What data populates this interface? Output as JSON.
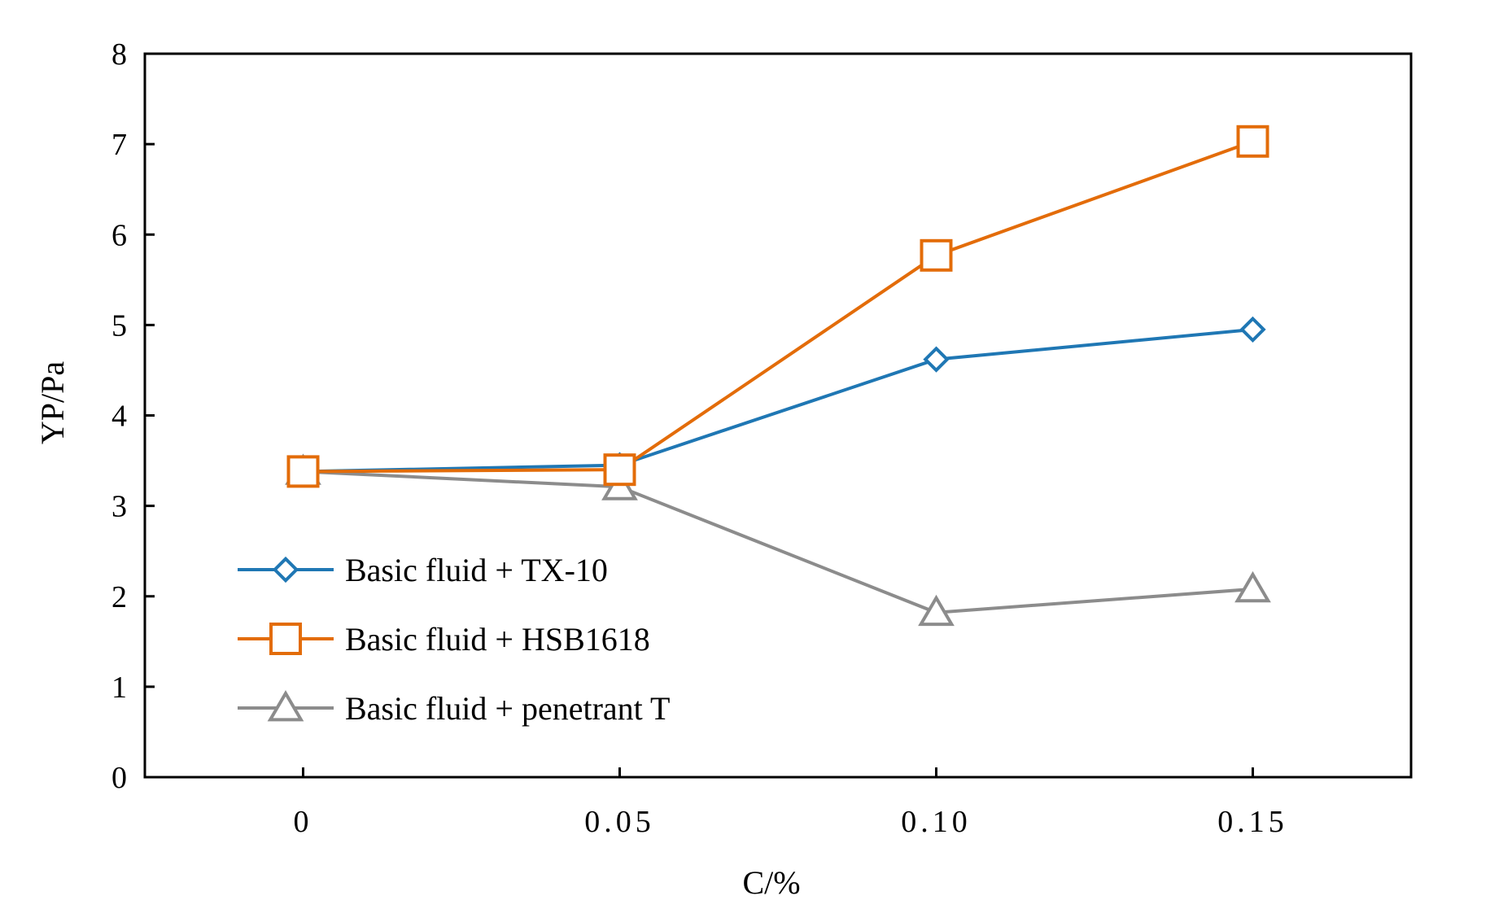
{
  "chart_data": {
    "type": "line",
    "title": "",
    "xlabel": "C/%",
    "ylabel": "YP/Pa",
    "categories": [
      "0",
      "0.05",
      "0.10",
      "0.15"
    ],
    "x": [
      0,
      0.05,
      0.1,
      0.15
    ],
    "xlim": [
      -0.025,
      0.175
    ],
    "ylim": [
      0,
      8
    ],
    "yticks": [
      "0",
      "1",
      "2",
      "3",
      "4",
      "5",
      "6",
      "7",
      "8"
    ],
    "grid": false,
    "legend_position": "bottom-left",
    "series": [
      {
        "name": "Basic fluid + TX-10",
        "values": [
          3.38,
          3.45,
          4.62,
          4.95
        ],
        "color": "#1f77b4",
        "marker": "diamond"
      },
      {
        "name": "Basic fluid + HSB1618",
        "values": [
          3.38,
          3.4,
          5.77,
          7.03
        ],
        "color": "#e36c09",
        "marker": "square"
      },
      {
        "name": "Basic fluid + penetrant T",
        "values": [
          3.38,
          3.21,
          1.82,
          2.08
        ],
        "color": "#8c8c8c",
        "marker": "triangle"
      }
    ]
  }
}
